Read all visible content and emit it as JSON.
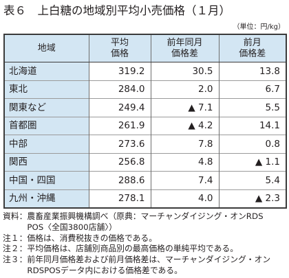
{
  "chart_data": {
    "type": "table",
    "title": "表６　上白糖の地域別平均小売価格（１月）",
    "unit": "（単位：円/kg）",
    "columns": [
      [
        "地域"
      ],
      [
        "平均",
        "価格"
      ],
      [
        "前年同月",
        "価格差"
      ],
      [
        "前月",
        "価格差"
      ]
    ],
    "rows": [
      [
        "北海道",
        "319.2",
        "30.5",
        "13.8"
      ],
      [
        "東北",
        "284.0",
        "2.0",
        "6.7"
      ],
      [
        "関東など",
        "249.4",
        "▲ 7.1",
        "5.5"
      ],
      [
        "首都圏",
        "261.9",
        "▲ 4.2",
        "14.1"
      ],
      [
        "中部",
        "273.6",
        "7.8",
        "0.8"
      ],
      [
        "関西",
        "256.8",
        "4.8",
        "▲ 1.1"
      ],
      [
        "中国・四国",
        "288.6",
        "7.4",
        "5.4"
      ],
      [
        "九州・沖縄",
        "278.1",
        "4.0",
        "▲ 2.3"
      ]
    ]
  },
  "notes": {
    "source": "資料：農畜産業振興機構調べ（原典：マーチャンダイジング・オンRDS",
    "source_cont": "POS〈全国3800店舗〉）",
    "note1": "注１：価格は、消費税抜きの価格である。",
    "note2": "注２：平均価格は、店舗別商品別の最高価格の単純平均である。",
    "note3": "注３：前年同月価格差および前月価格差は、マーチャンダイジング・オン",
    "note3_cont": "RDSPOSデータ内における価格差である。"
  },
  "colors": {
    "header_bg": "#d3e6f3",
    "text": "#231f20",
    "border_strong": "#3a3a3a"
  }
}
